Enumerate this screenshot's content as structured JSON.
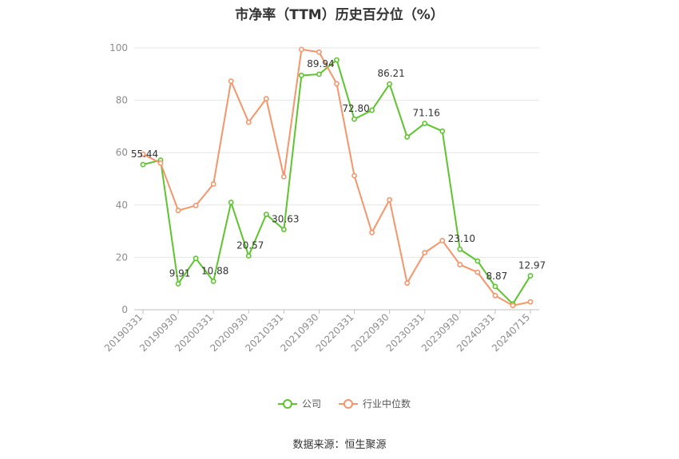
{
  "chart_data": {
    "type": "line",
    "title": "市净率（TTM）历史百分位（%）",
    "xlabel": "",
    "ylabel": "",
    "ylim": [
      0,
      100
    ],
    "yticks": [
      0,
      20,
      40,
      60,
      80,
      100
    ],
    "grid": true,
    "legend_position": "bottom",
    "x": [
      "20190331",
      "20190630",
      "20190930",
      "20191231",
      "20200331",
      "20200630",
      "20200930",
      "20201231",
      "20210331",
      "20210630",
      "20210930",
      "20211231",
      "20220331",
      "20220630",
      "20220930",
      "20221231",
      "20230331",
      "20230630",
      "20230930",
      "20231231",
      "20240331",
      "20240630",
      "20240715"
    ],
    "xtick_labels": [
      "20190331",
      "20190930",
      "20200331",
      "20200930",
      "20210331",
      "20210930",
      "20220331",
      "20220930",
      "20230331",
      "20230930",
      "20240331",
      "20240715"
    ],
    "series": [
      {
        "name": "公司",
        "color": "#5dc42e",
        "values": [
          55.44,
          57.1,
          9.91,
          19.6,
          10.88,
          41.0,
          20.57,
          36.4,
          30.63,
          89.5,
          89.94,
          95.4,
          72.8,
          76.2,
          86.21,
          66.0,
          71.16,
          68.2,
          23.1,
          18.6,
          8.87,
          2.2,
          12.97
        ],
        "labels": {
          "0": "55.44",
          "2": "9.91",
          "4": "10.88",
          "6": "20.57",
          "8": "30.63",
          "10": "89.94",
          "12": "72.80",
          "14": "86.21",
          "16": "71.16",
          "18": "23.10",
          "20": "8.87",
          "22": "12.97"
        }
      },
      {
        "name": "行业中位数",
        "color": "#f4956a",
        "values": [
          59.4,
          56.0,
          37.9,
          39.8,
          48.0,
          87.3,
          71.6,
          80.6,
          50.8,
          99.4,
          98.4,
          86.3,
          51.2,
          29.5,
          42.0,
          10.2,
          21.8,
          26.4,
          17.2,
          14.3,
          5.4,
          1.6,
          3.0
        ]
      }
    ]
  },
  "source_note": "数据来源：恒生聚源"
}
